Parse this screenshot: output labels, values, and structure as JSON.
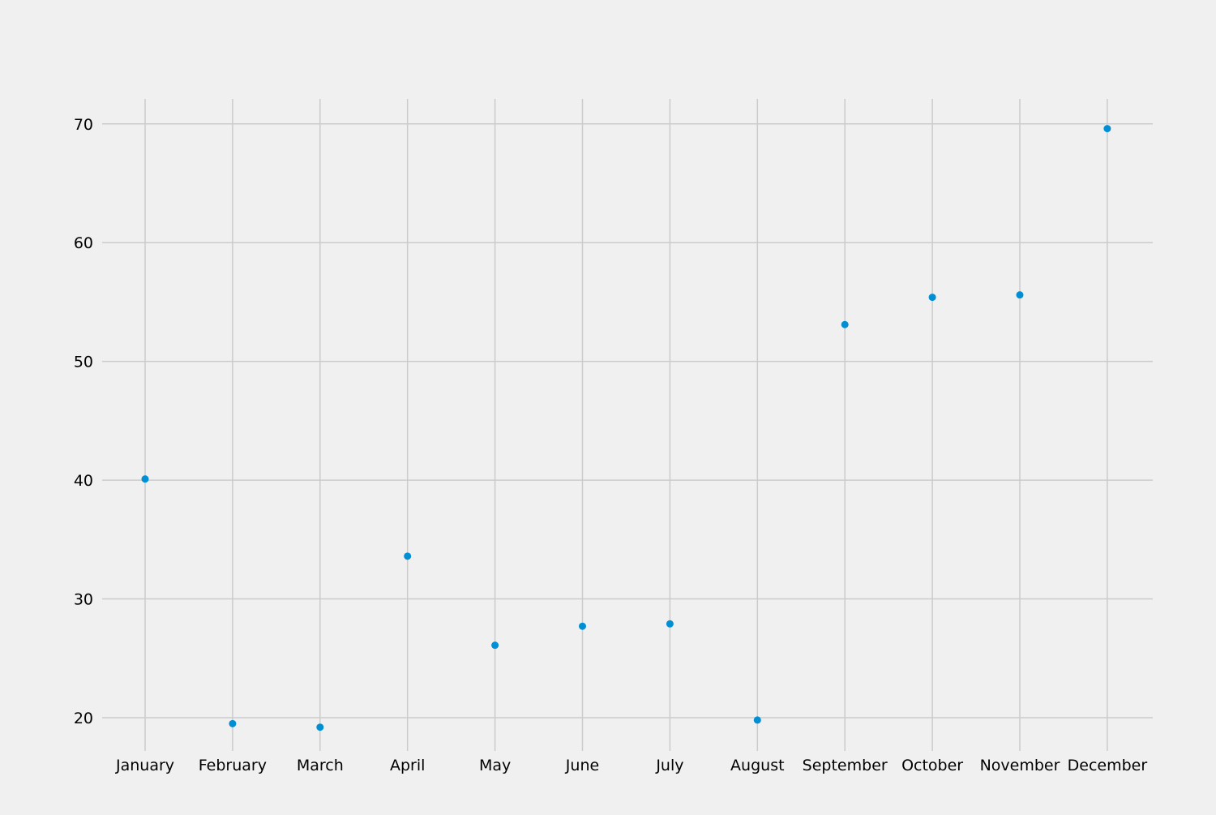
{
  "chart_data": {
    "type": "scatter",
    "categories": [
      "January",
      "February",
      "March",
      "April",
      "May",
      "June",
      "July",
      "August",
      "September",
      "October",
      "November",
      "December"
    ],
    "values": [
      40.1,
      19.5,
      19.2,
      33.6,
      26.1,
      27.7,
      27.9,
      19.8,
      53.1,
      55.4,
      55.6,
      69.6
    ],
    "title": "",
    "xlabel": "",
    "ylabel": "",
    "ylim": [
      17.2,
      72.1
    ],
    "yticks": [
      20,
      30,
      40,
      50,
      60,
      70
    ],
    "grid": true,
    "legend": "none",
    "colors": {
      "background": "#f0f0f0",
      "grid": "#cbcbcb",
      "marker": "#008fd5",
      "text": "#000000"
    }
  }
}
